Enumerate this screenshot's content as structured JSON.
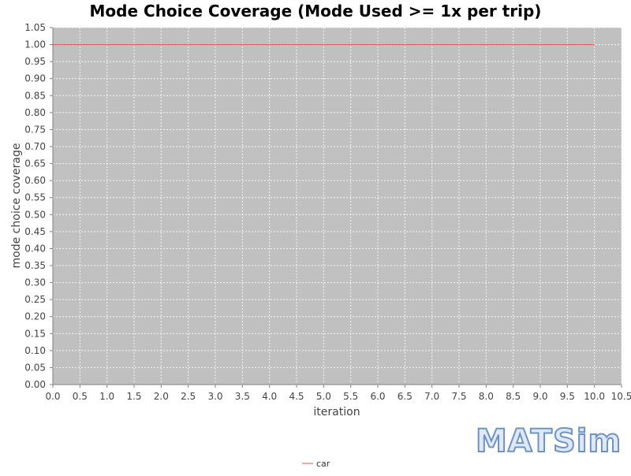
{
  "chart_data": {
    "type": "line",
    "title": "Mode Choice Coverage (Mode Used >= 1x per trip)",
    "xlabel": "iteration",
    "ylabel": "mode choice coverage",
    "xlim": [
      0.0,
      10.5
    ],
    "ylim": [
      0.0,
      1.05
    ],
    "x_ticks": [
      "0.0",
      "0.5",
      "1.0",
      "1.5",
      "2.0",
      "2.5",
      "3.0",
      "3.5",
      "4.0",
      "4.5",
      "5.0",
      "5.5",
      "6.0",
      "6.5",
      "7.0",
      "7.5",
      "8.0",
      "8.5",
      "9.0",
      "9.5",
      "10.0",
      "10.5"
    ],
    "y_ticks": [
      "0.00",
      "0.05",
      "0.10",
      "0.15",
      "0.20",
      "0.25",
      "0.30",
      "0.35",
      "0.40",
      "0.45",
      "0.50",
      "0.55",
      "0.60",
      "0.65",
      "0.70",
      "0.75",
      "0.80",
      "0.85",
      "0.90",
      "0.95",
      "1.00",
      "1.05"
    ],
    "grid": true,
    "legend_position": "bottom-center",
    "plot_background": "#c0c0c0",
    "series": [
      {
        "name": "car",
        "color": "#e05050",
        "x": [
          0,
          1,
          2,
          3,
          4,
          5,
          6,
          7,
          8,
          9,
          10
        ],
        "values": [
          1.0,
          1.0,
          1.0,
          1.0,
          1.0,
          1.0,
          1.0,
          1.0,
          1.0,
          1.0,
          1.0
        ]
      }
    ]
  },
  "logo": {
    "text": "MATSim",
    "fill_color": "#dde9f7",
    "stroke_color": "#6f93c5"
  }
}
